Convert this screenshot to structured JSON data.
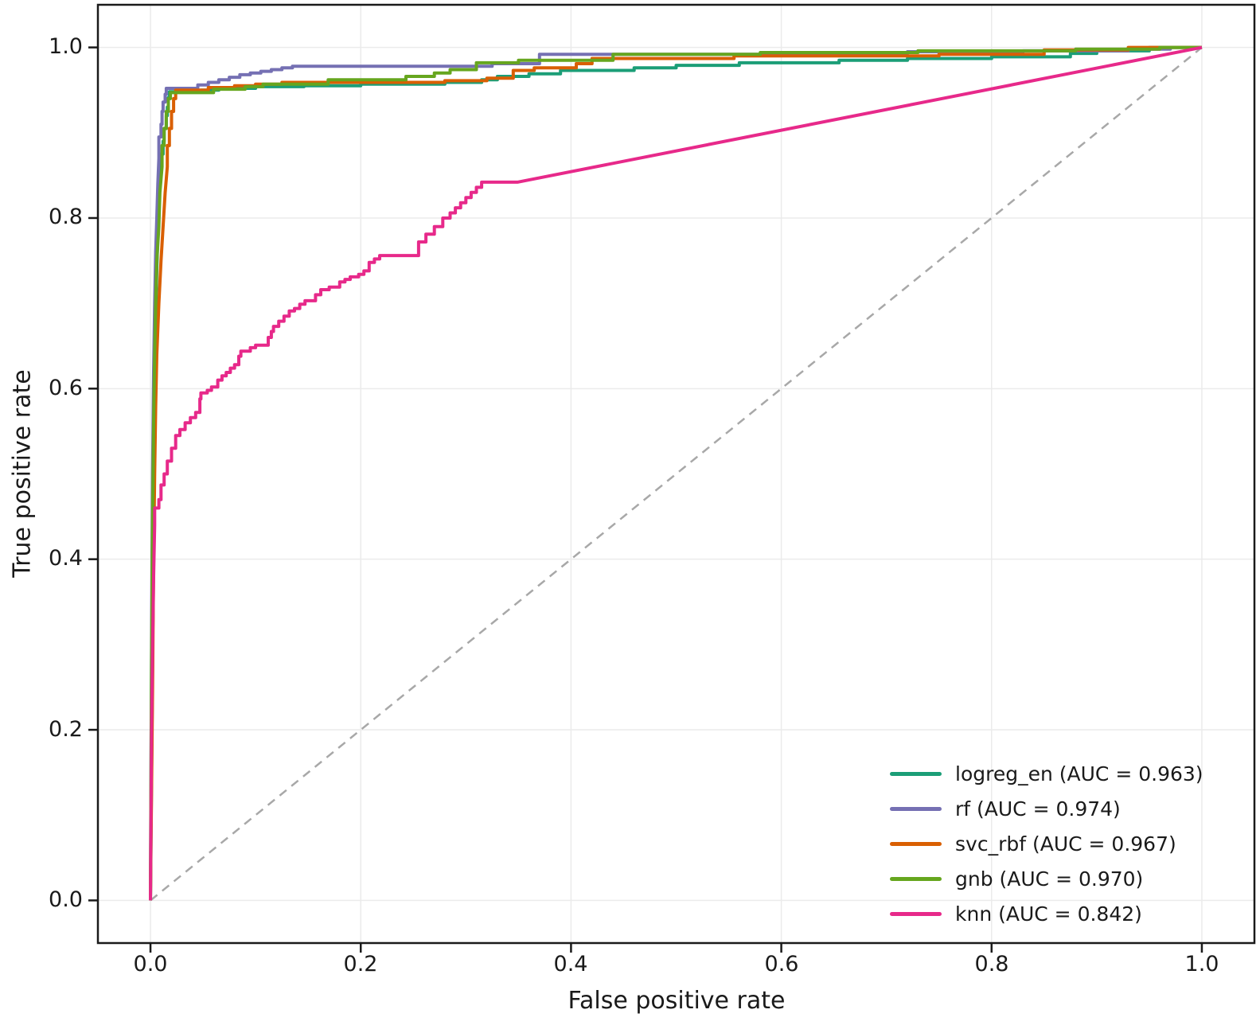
{
  "chart_data": {
    "type": "line",
    "title": "",
    "xlabel": "False positive rate",
    "ylabel": "True positive rate",
    "xlim": [
      -0.05,
      1.05
    ],
    "ylim": [
      -0.05,
      1.05
    ],
    "grid": true,
    "grid_color": "#ebebeb",
    "spine_color": "#1a1a1a",
    "legend_position": "lower right",
    "x_ticks": [
      0,
      0.2,
      0.4,
      0.6,
      0.8,
      1.0
    ],
    "y_ticks": [
      0,
      0.2,
      0.4,
      0.6,
      0.8,
      1.0
    ],
    "x_tick_labels": [
      "0.0",
      "0.2",
      "0.4",
      "0.6",
      "0.8",
      "1.0"
    ],
    "y_tick_labels": [
      "0.0",
      "0.2",
      "0.4",
      "0.6",
      "0.8",
      "1.0"
    ],
    "reference_line": {
      "name": "chance-diagonal",
      "style": "dashed",
      "color": "#a8a8a8",
      "points": [
        [
          0,
          0
        ],
        [
          1,
          1
        ]
      ]
    },
    "series": [
      {
        "name": "logreg_en",
        "auc": 0.963,
        "label": "logreg_en (AUC = 0.963)",
        "color": "#1b9e77",
        "points": [
          [
            0,
            0
          ],
          [
            0.002,
            0.28
          ],
          [
            0.003,
            0.45
          ],
          [
            0.004,
            0.55
          ],
          [
            0.004,
            0.62
          ],
          [
            0.005,
            0.68
          ],
          [
            0.006,
            0.74
          ],
          [
            0.007,
            0.78
          ],
          [
            0.008,
            0.82
          ],
          [
            0.01,
            0.85
          ],
          [
            0.012,
            0.875
          ],
          [
            0.013,
            0.89
          ],
          [
            0.015,
            0.905
          ],
          [
            0.016,
            0.92
          ],
          [
            0.017,
            0.93
          ],
          [
            0.018,
            0.941
          ],
          [
            0.02,
            0.948
          ],
          [
            0.048,
            0.948
          ],
          [
            0.048,
            0.95
          ],
          [
            0.065,
            0.95
          ],
          [
            0.065,
            0.952
          ],
          [
            0.1,
            0.952
          ],
          [
            0.1,
            0.954
          ],
          [
            0.146,
            0.954
          ],
          [
            0.146,
            0.955
          ],
          [
            0.2,
            0.955
          ],
          [
            0.2,
            0.957
          ],
          [
            0.28,
            0.957
          ],
          [
            0.28,
            0.959
          ],
          [
            0.315,
            0.959
          ],
          [
            0.315,
            0.962
          ],
          [
            0.33,
            0.962
          ],
          [
            0.33,
            0.966
          ],
          [
            0.36,
            0.966
          ],
          [
            0.36,
            0.969
          ],
          [
            0.39,
            0.969
          ],
          [
            0.39,
            0.973
          ],
          [
            0.46,
            0.973
          ],
          [
            0.46,
            0.976
          ],
          [
            0.5,
            0.976
          ],
          [
            0.5,
            0.979
          ],
          [
            0.56,
            0.979
          ],
          [
            0.56,
            0.982
          ],
          [
            0.655,
            0.982
          ],
          [
            0.655,
            0.985
          ],
          [
            0.72,
            0.985
          ],
          [
            0.72,
            0.987
          ],
          [
            0.8,
            0.987
          ],
          [
            0.8,
            0.989
          ],
          [
            0.875,
            0.989
          ],
          [
            0.875,
            0.993
          ],
          [
            0.9,
            0.993
          ],
          [
            0.9,
            0.996
          ],
          [
            0.95,
            0.996
          ],
          [
            0.95,
            1
          ],
          [
            1,
            1
          ]
        ]
      },
      {
        "name": "rf",
        "auc": 0.974,
        "label": "rf (AUC = 0.974)",
        "color": "#7570b3",
        "points": [
          [
            0,
            0
          ],
          [
            0.001,
            0.3
          ],
          [
            0.002,
            0.5
          ],
          [
            0.003,
            0.62
          ],
          [
            0.004,
            0.7
          ],
          [
            0.005,
            0.76
          ],
          [
            0.006,
            0.8
          ],
          [
            0.007,
            0.84
          ],
          [
            0.008,
            0.87
          ],
          [
            0.01,
            0.895
          ],
          [
            0.011,
            0.91
          ],
          [
            0.012,
            0.925
          ],
          [
            0.014,
            0.936
          ],
          [
            0.015,
            0.945
          ],
          [
            0.017,
            0.952
          ],
          [
            0.045,
            0.952
          ],
          [
            0.045,
            0.956
          ],
          [
            0.055,
            0.956
          ],
          [
            0.055,
            0.959
          ],
          [
            0.065,
            0.959
          ],
          [
            0.065,
            0.962
          ],
          [
            0.075,
            0.962
          ],
          [
            0.075,
            0.965
          ],
          [
            0.085,
            0.965
          ],
          [
            0.085,
            0.968
          ],
          [
            0.095,
            0.968
          ],
          [
            0.095,
            0.97
          ],
          [
            0.105,
            0.97
          ],
          [
            0.105,
            0.972
          ],
          [
            0.115,
            0.972
          ],
          [
            0.115,
            0.974
          ],
          [
            0.125,
            0.974
          ],
          [
            0.125,
            0.976
          ],
          [
            0.135,
            0.976
          ],
          [
            0.135,
            0.978
          ],
          [
            0.325,
            0.978
          ],
          [
            0.325,
            0.981
          ],
          [
            0.37,
            0.981
          ],
          [
            0.37,
            0.992
          ],
          [
            0.6,
            0.992
          ],
          [
            0.6,
            0.993
          ],
          [
            0.72,
            0.993
          ],
          [
            0.72,
            0.995
          ],
          [
            0.83,
            0.995
          ],
          [
            0.83,
            0.996
          ],
          [
            0.93,
            0.996
          ],
          [
            0.93,
            0.998
          ],
          [
            0.97,
            0.998
          ],
          [
            0.97,
            1
          ],
          [
            1,
            1
          ]
        ]
      },
      {
        "name": "svc_rbf",
        "auc": 0.967,
        "label": "svc_rbf (AUC = 0.967)",
        "color": "#d95f02",
        "points": [
          [
            0,
            0
          ],
          [
            0.002,
            0.25
          ],
          [
            0.003,
            0.4
          ],
          [
            0.004,
            0.5
          ],
          [
            0.005,
            0.58
          ],
          [
            0.006,
            0.64
          ],
          [
            0.008,
            0.7
          ],
          [
            0.01,
            0.75
          ],
          [
            0.012,
            0.79
          ],
          [
            0.014,
            0.83
          ],
          [
            0.016,
            0.86
          ],
          [
            0.018,
            0.885
          ],
          [
            0.02,
            0.905
          ],
          [
            0.022,
            0.925
          ],
          [
            0.024,
            0.94
          ],
          [
            0.026,
            0.95
          ],
          [
            0.055,
            0.95
          ],
          [
            0.055,
            0.953
          ],
          [
            0.08,
            0.953
          ],
          [
            0.08,
            0.955
          ],
          [
            0.1,
            0.955
          ],
          [
            0.1,
            0.957
          ],
          [
            0.125,
            0.957
          ],
          [
            0.125,
            0.959
          ],
          [
            0.28,
            0.959
          ],
          [
            0.28,
            0.961
          ],
          [
            0.32,
            0.961
          ],
          [
            0.32,
            0.964
          ],
          [
            0.345,
            0.964
          ],
          [
            0.345,
            0.973
          ],
          [
            0.365,
            0.973
          ],
          [
            0.365,
            0.976
          ],
          [
            0.405,
            0.976
          ],
          [
            0.405,
            0.981
          ],
          [
            0.42,
            0.981
          ],
          [
            0.42,
            0.987
          ],
          [
            0.555,
            0.987
          ],
          [
            0.555,
            0.99
          ],
          [
            0.75,
            0.99
          ],
          [
            0.75,
            0.992
          ],
          [
            0.85,
            0.992
          ],
          [
            0.85,
            0.997
          ],
          [
            0.93,
            0.997
          ],
          [
            0.93,
            1
          ],
          [
            1,
            1
          ]
        ]
      },
      {
        "name": "gnb",
        "auc": 0.97,
        "label": "gnb (AUC = 0.970)",
        "color": "#66a61e",
        "points": [
          [
            0,
            0
          ],
          [
            0.001,
            0.28
          ],
          [
            0.002,
            0.45
          ],
          [
            0.003,
            0.56
          ],
          [
            0.004,
            0.64
          ],
          [
            0.005,
            0.7
          ],
          [
            0.006,
            0.75
          ],
          [
            0.008,
            0.79
          ],
          [
            0.009,
            0.83
          ],
          [
            0.011,
            0.86
          ],
          [
            0.013,
            0.885
          ],
          [
            0.015,
            0.905
          ],
          [
            0.017,
            0.925
          ],
          [
            0.019,
            0.94
          ],
          [
            0.021,
            0.947
          ],
          [
            0.06,
            0.947
          ],
          [
            0.06,
            0.951
          ],
          [
            0.09,
            0.951
          ],
          [
            0.09,
            0.954
          ],
          [
            0.107,
            0.954
          ],
          [
            0.107,
            0.957
          ],
          [
            0.169,
            0.957
          ],
          [
            0.169,
            0.962
          ],
          [
            0.243,
            0.962
          ],
          [
            0.243,
            0.966
          ],
          [
            0.27,
            0.966
          ],
          [
            0.27,
            0.97
          ],
          [
            0.285,
            0.97
          ],
          [
            0.285,
            0.974
          ],
          [
            0.31,
            0.974
          ],
          [
            0.31,
            0.982
          ],
          [
            0.35,
            0.982
          ],
          [
            0.35,
            0.985
          ],
          [
            0.44,
            0.985
          ],
          [
            0.44,
            0.992
          ],
          [
            0.58,
            0.992
          ],
          [
            0.58,
            0.994
          ],
          [
            0.73,
            0.994
          ],
          [
            0.73,
            0.996
          ],
          [
            0.88,
            0.996
          ],
          [
            0.88,
            0.998
          ],
          [
            0.96,
            0.998
          ],
          [
            0.96,
            1
          ],
          [
            1,
            1
          ]
        ]
      },
      {
        "name": "knn",
        "auc": 0.842,
        "label": "knn (AUC = 0.842)",
        "color": "#e7298a",
        "points": [
          [
            0,
            0
          ],
          [
            0.001,
            0.2
          ],
          [
            0.002,
            0.3
          ],
          [
            0.003,
            0.38
          ],
          [
            0.004,
            0.44
          ],
          [
            0.008,
            0.46
          ],
          [
            0.01,
            0.47
          ],
          [
            0.013,
            0.487
          ],
          [
            0.016,
            0.5
          ],
          [
            0.02,
            0.515
          ],
          [
            0.024,
            0.53
          ],
          [
            0.028,
            0.545
          ],
          [
            0.033,
            0.552
          ],
          [
            0.038,
            0.56
          ],
          [
            0.043,
            0.566
          ],
          [
            0.047,
            0.572
          ],
          [
            0.048,
            0.588
          ],
          [
            0.054,
            0.595
          ],
          [
            0.058,
            0.598
          ],
          [
            0.064,
            0.602
          ],
          [
            0.068,
            0.61
          ],
          [
            0.072,
            0.615
          ],
          [
            0.076,
            0.619
          ],
          [
            0.08,
            0.624
          ],
          [
            0.084,
            0.628
          ],
          [
            0.086,
            0.638
          ],
          [
            0.095,
            0.644
          ],
          [
            0.1,
            0.648
          ],
          [
            0.112,
            0.651
          ],
          [
            0.115,
            0.66
          ],
          [
            0.117,
            0.667
          ],
          [
            0.122,
            0.673
          ],
          [
            0.127,
            0.679
          ],
          [
            0.132,
            0.685
          ],
          [
            0.137,
            0.691
          ],
          [
            0.142,
            0.694
          ],
          [
            0.147,
            0.699
          ],
          [
            0.157,
            0.703
          ],
          [
            0.162,
            0.71
          ],
          [
            0.17,
            0.716
          ],
          [
            0.18,
            0.719
          ],
          [
            0.185,
            0.725
          ],
          [
            0.19,
            0.728
          ],
          [
            0.198,
            0.731
          ],
          [
            0.203,
            0.734
          ],
          [
            0.208,
            0.738
          ],
          [
            0.213,
            0.748
          ],
          [
            0.218,
            0.752
          ],
          [
            0.225,
            0.756
          ],
          [
            0.255,
            0.756
          ],
          [
            0.262,
            0.772
          ],
          [
            0.27,
            0.781
          ],
          [
            0.278,
            0.79
          ],
          [
            0.285,
            0.8
          ],
          [
            0.29,
            0.806
          ],
          [
            0.295,
            0.812
          ],
          [
            0.3,
            0.818
          ],
          [
            0.305,
            0.824
          ],
          [
            0.31,
            0.83
          ],
          [
            0.315,
            0.836
          ],
          [
            0.319,
            0.842
          ],
          [
            0.349,
            0.842
          ],
          [
            1,
            1
          ]
        ]
      }
    ]
  }
}
